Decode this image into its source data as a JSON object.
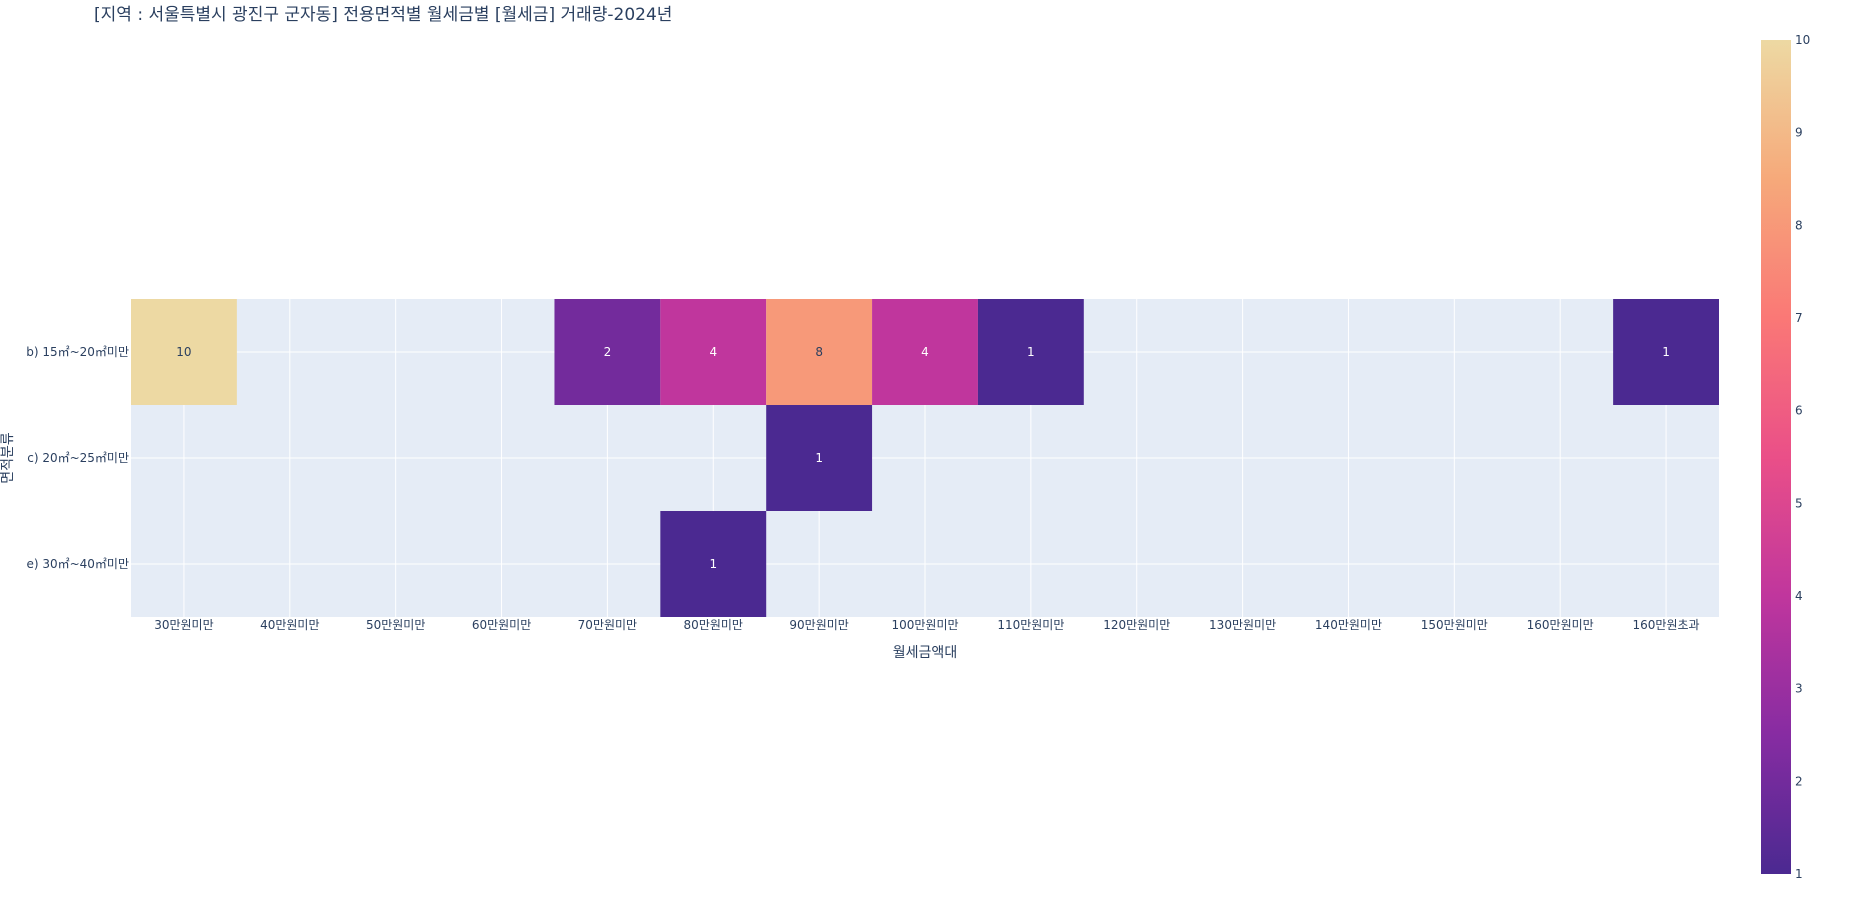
{
  "chart_data": {
    "type": "heatmap",
    "title": "[지역 : 서울특별시 광진구 군자동] 전용면적별 월세금별 [월세금] 거래량-2024년",
    "xlabel": "월세금액대",
    "ylabel": "면적분류",
    "x_categories": [
      "30만원미만",
      "40만원미만",
      "50만원미만",
      "60만원미만",
      "70만원미만",
      "80만원미만",
      "90만원미만",
      "100만원미만",
      "110만원미만",
      "120만원미만",
      "130만원미만",
      "140만원미만",
      "150만원미만",
      "160만원미만",
      "160만원초과"
    ],
    "y_categories": [
      "b) 15㎡~20㎡미만",
      "c) 20㎡~25㎡미만",
      "e) 30㎡~40㎡미만"
    ],
    "z": [
      [
        10,
        null,
        null,
        null,
        2,
        4,
        8,
        4,
        1,
        null,
        null,
        null,
        null,
        null,
        1
      ],
      [
        null,
        null,
        null,
        null,
        null,
        null,
        1,
        null,
        null,
        null,
        null,
        null,
        null,
        null,
        null
      ],
      [
        null,
        null,
        null,
        null,
        null,
        1,
        null,
        null,
        null,
        null,
        null,
        null,
        null,
        null,
        null
      ]
    ],
    "zmin": 1,
    "zmax": 10,
    "colorbar_ticks": [
      1,
      2,
      3,
      4,
      5,
      6,
      7,
      8,
      9,
      10
    ],
    "colorscale": [
      "#4b2991",
      "#872ca2",
      "#c0369d",
      "#ea4f88",
      "#fa7876",
      "#f6a97a",
      "#edd9a3"
    ],
    "plot_bgcolor": "#e5ecf6",
    "grid": true,
    "colorbar_position": "right"
  }
}
